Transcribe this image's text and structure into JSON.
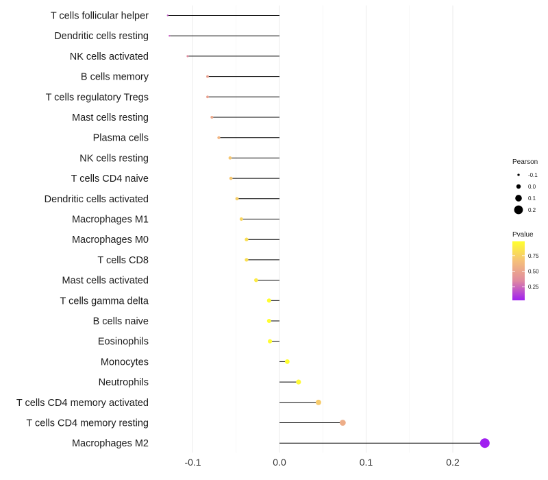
{
  "chart_data": {
    "type": "lollipop",
    "xlabel": "",
    "ylabel": "",
    "xlim": [
      -0.135,
      0.25
    ],
    "x_ticks": [
      -0.1,
      0.0,
      0.1,
      0.2
    ],
    "x_tick_labels": [
      "-0.1",
      "0.0",
      "0.1",
      "0.2"
    ],
    "grid": true,
    "categories": [
      "T cells follicular helper",
      "Dendritic cells resting",
      "NK cells activated",
      "B cells memory",
      "T cells regulatory  Tregs ",
      "Mast cells resting",
      "Plasma cells",
      "NK cells resting",
      "T cells CD4 naive",
      "Dendritic cells activated",
      "Macrophages M1",
      "Macrophages M0",
      "T cells CD8",
      "Mast cells activated",
      "T cells gamma delta",
      "B cells naive",
      "Eosinophils",
      "Monocytes",
      "Neutrophils",
      "T cells CD4 memory activated",
      "T cells CD4 memory resting",
      "Macrophages M2"
    ],
    "pearson": [
      -0.129,
      -0.127,
      -0.106,
      -0.083,
      -0.083,
      -0.078,
      -0.07,
      -0.057,
      -0.056,
      -0.049,
      -0.044,
      -0.038,
      -0.038,
      -0.027,
      -0.012,
      -0.012,
      -0.011,
      0.009,
      0.022,
      0.045,
      0.073,
      0.237
    ],
    "pvalue": [
      0.2,
      0.22,
      0.35,
      0.48,
      0.48,
      0.52,
      0.6,
      0.7,
      0.7,
      0.74,
      0.77,
      0.82,
      0.82,
      0.88,
      0.97,
      0.97,
      0.97,
      0.98,
      0.95,
      0.72,
      0.55,
      0.03
    ],
    "legend_size": {
      "title": "Pearson",
      "labels": [
        "-0.1",
        "0.0",
        "0.1",
        "0.2"
      ],
      "values": [
        -0.1,
        0.0,
        0.1,
        0.2
      ],
      "position": "right"
    },
    "legend_color": {
      "title": "Pvalue",
      "labels": [
        "0.75",
        "0.50",
        "0.25"
      ],
      "values": [
        0.75,
        0.5,
        0.25
      ],
      "range": [
        0.03,
        0.98
      ],
      "colors": [
        "#A020F0",
        "#E08AA0",
        "#F5C07A",
        "#FFFF2E"
      ],
      "position": "right"
    }
  }
}
